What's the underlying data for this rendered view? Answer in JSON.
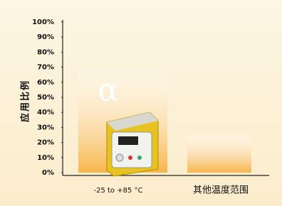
{
  "chart_data": {
    "type": "bar",
    "y_label": "应用比例",
    "categories": [
      "-25 to +85 °C",
      "其他温度范围"
    ],
    "values": [
      70,
      25
    ],
    "color": "#f7b54a",
    "annotation": "α",
    "ylim": [
      0,
      100
    ],
    "yticks": [
      {
        "value": 0,
        "label": "0%"
      },
      {
        "value": 10,
        "label": "10%"
      },
      {
        "value": 20,
        "label": "20%"
      },
      {
        "value": 30,
        "label": "30%"
      },
      {
        "value": 40,
        "label": "40%"
      },
      {
        "value": 50,
        "label": "50%"
      },
      {
        "value": 60,
        "label": "60%"
      },
      {
        "value": 70,
        "label": "70%"
      },
      {
        "value": 80,
        "label": "80%"
      },
      {
        "value": 90,
        "label": "90%"
      },
      {
        "value": 100,
        "label": "100%"
      }
    ]
  }
}
